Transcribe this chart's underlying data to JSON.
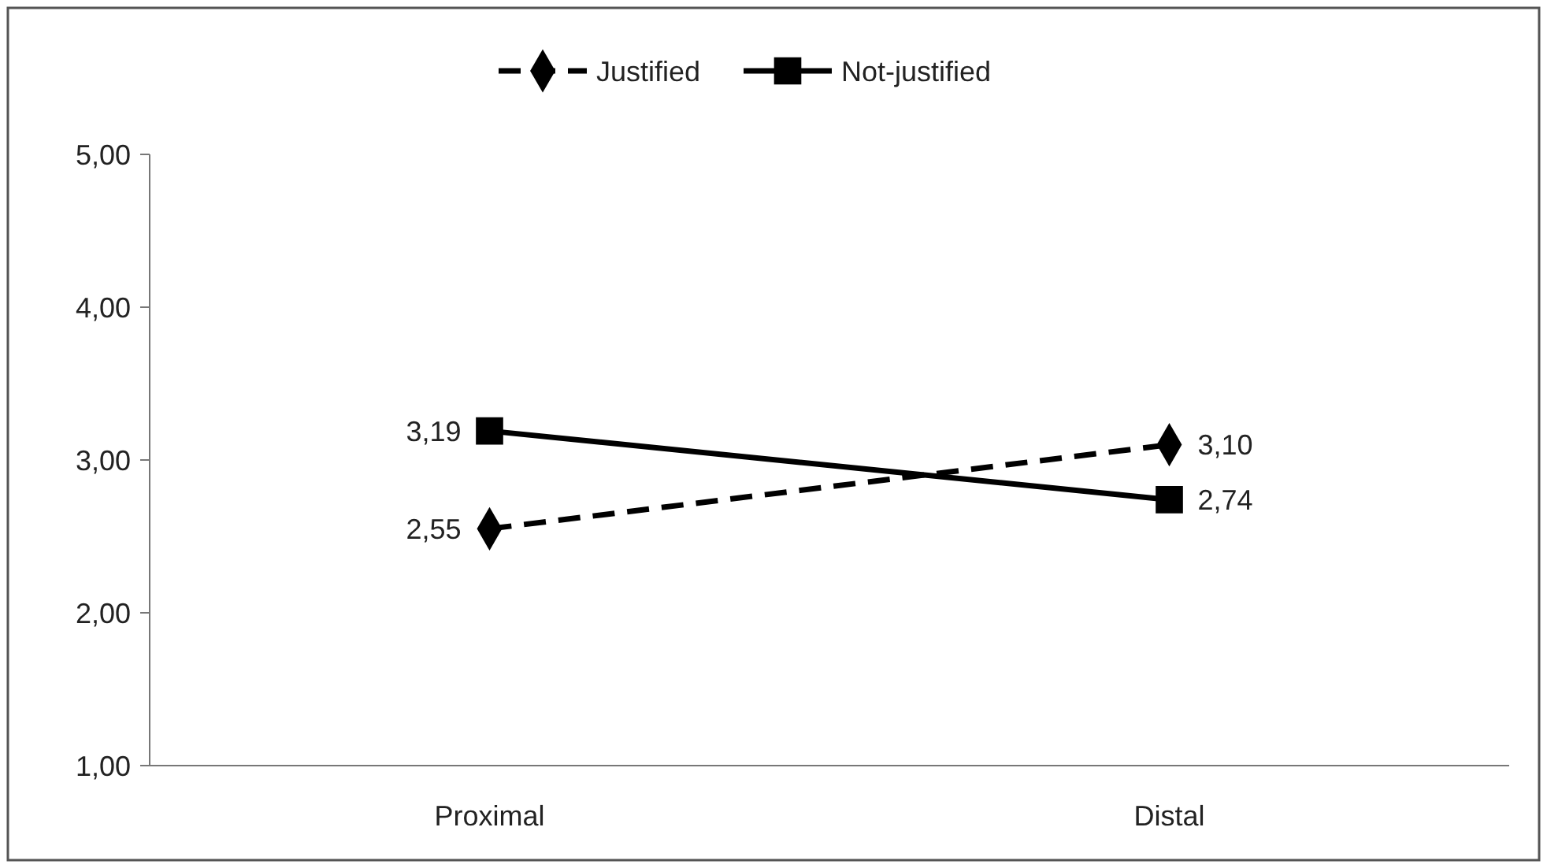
{
  "chart_data": {
    "type": "line",
    "categories": [
      "Proximal",
      "Distal"
    ],
    "series": [
      {
        "name": "Justified",
        "color": "#000000",
        "values": [
          2.55,
          3.1
        ],
        "marker": "diamond",
        "line_style": "dashed",
        "value_labels": [
          "2,55",
          "3,10"
        ]
      },
      {
        "name": "Not-justified",
        "color": "#000000",
        "values": [
          3.19,
          2.74
        ],
        "marker": "square",
        "line_style": "solid",
        "value_labels": [
          "3,19",
          "2,74"
        ]
      }
    ],
    "ylim": [
      1,
      5
    ],
    "yticks": [
      {
        "value": 1,
        "label": "1,00"
      },
      {
        "value": 2,
        "label": "2,00"
      },
      {
        "value": 3,
        "label": "3,00"
      },
      {
        "value": 4,
        "label": "4,00"
      },
      {
        "value": 5,
        "label": "5,00"
      }
    ],
    "grid": false,
    "legend": "top"
  }
}
